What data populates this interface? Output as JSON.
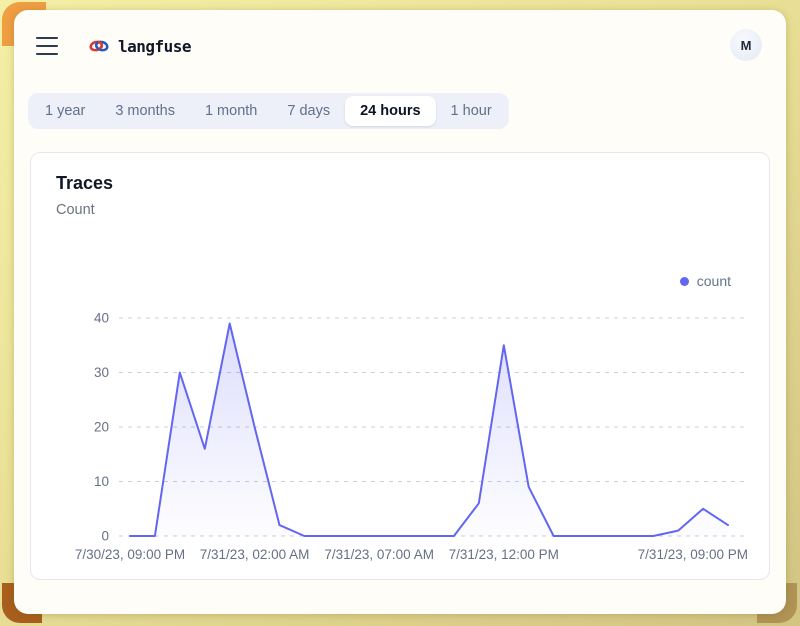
{
  "header": {
    "brand": "langfuse",
    "avatar_initial": "M"
  },
  "tabs": {
    "options": [
      "1 year",
      "3 months",
      "1 month",
      "7 days",
      "24 hours",
      "1 hour"
    ],
    "selected": "24 hours"
  },
  "traces_card": {
    "title": "Traces",
    "subtitle": "Count"
  },
  "chart_data": {
    "type": "area",
    "title": "Traces",
    "ylabel": "Count",
    "legend_position": "top-right",
    "grid": "horizontal-dashed",
    "x": [
      "7/30/23, 09:00 PM",
      "7/30/23, 10:00 PM",
      "7/30/23, 11:00 PM",
      "7/31/23, 12:00 AM",
      "7/31/23, 01:00 AM",
      "7/31/23, 02:00 AM",
      "7/31/23, 03:00 AM",
      "7/31/23, 04:00 AM",
      "7/31/23, 05:00 AM",
      "7/31/23, 06:00 AM",
      "7/31/23, 07:00 AM",
      "7/31/23, 08:00 AM",
      "7/31/23, 09:00 AM",
      "7/31/23, 10:00 AM",
      "7/31/23, 11:00 AM",
      "7/31/23, 12:00 PM",
      "7/31/23, 01:00 PM",
      "7/31/23, 02:00 PM",
      "7/31/23, 03:00 PM",
      "7/31/23, 04:00 PM",
      "7/31/23, 05:00 PM",
      "7/31/23, 06:00 PM",
      "7/31/23, 07:00 PM",
      "7/31/23, 08:00 PM",
      "7/31/23, 09:00 PM"
    ],
    "series": [
      {
        "name": "count",
        "color": "#6366f1",
        "values": [
          0,
          0,
          30,
          16,
          39,
          20,
          2,
          0,
          0,
          0,
          0,
          0,
          0,
          0,
          6,
          35,
          9,
          0,
          0,
          0,
          0,
          0,
          1,
          5,
          2
        ]
      }
    ],
    "legend": [
      {
        "name": "count",
        "color": "#6366f1"
      }
    ],
    "x_tick_indices": [
      0,
      5,
      10,
      15,
      24
    ],
    "x_tick_labels": [
      "7/30/23, 09:00 PM",
      "7/31/23, 02:00 AM",
      "7/31/23, 07:00 AM",
      "7/31/23, 12:00 PM",
      "7/31/23, 09:00 PM"
    ],
    "y_ticks": [
      0,
      10,
      20,
      30,
      40
    ],
    "ylim": [
      0,
      40
    ]
  },
  "colors": {
    "accent": "#6366f1",
    "grid": "#c9cfd9",
    "axis_text": "#667085",
    "frame_yellow": "#e9e096",
    "frame_orange": "#ef9e42"
  }
}
